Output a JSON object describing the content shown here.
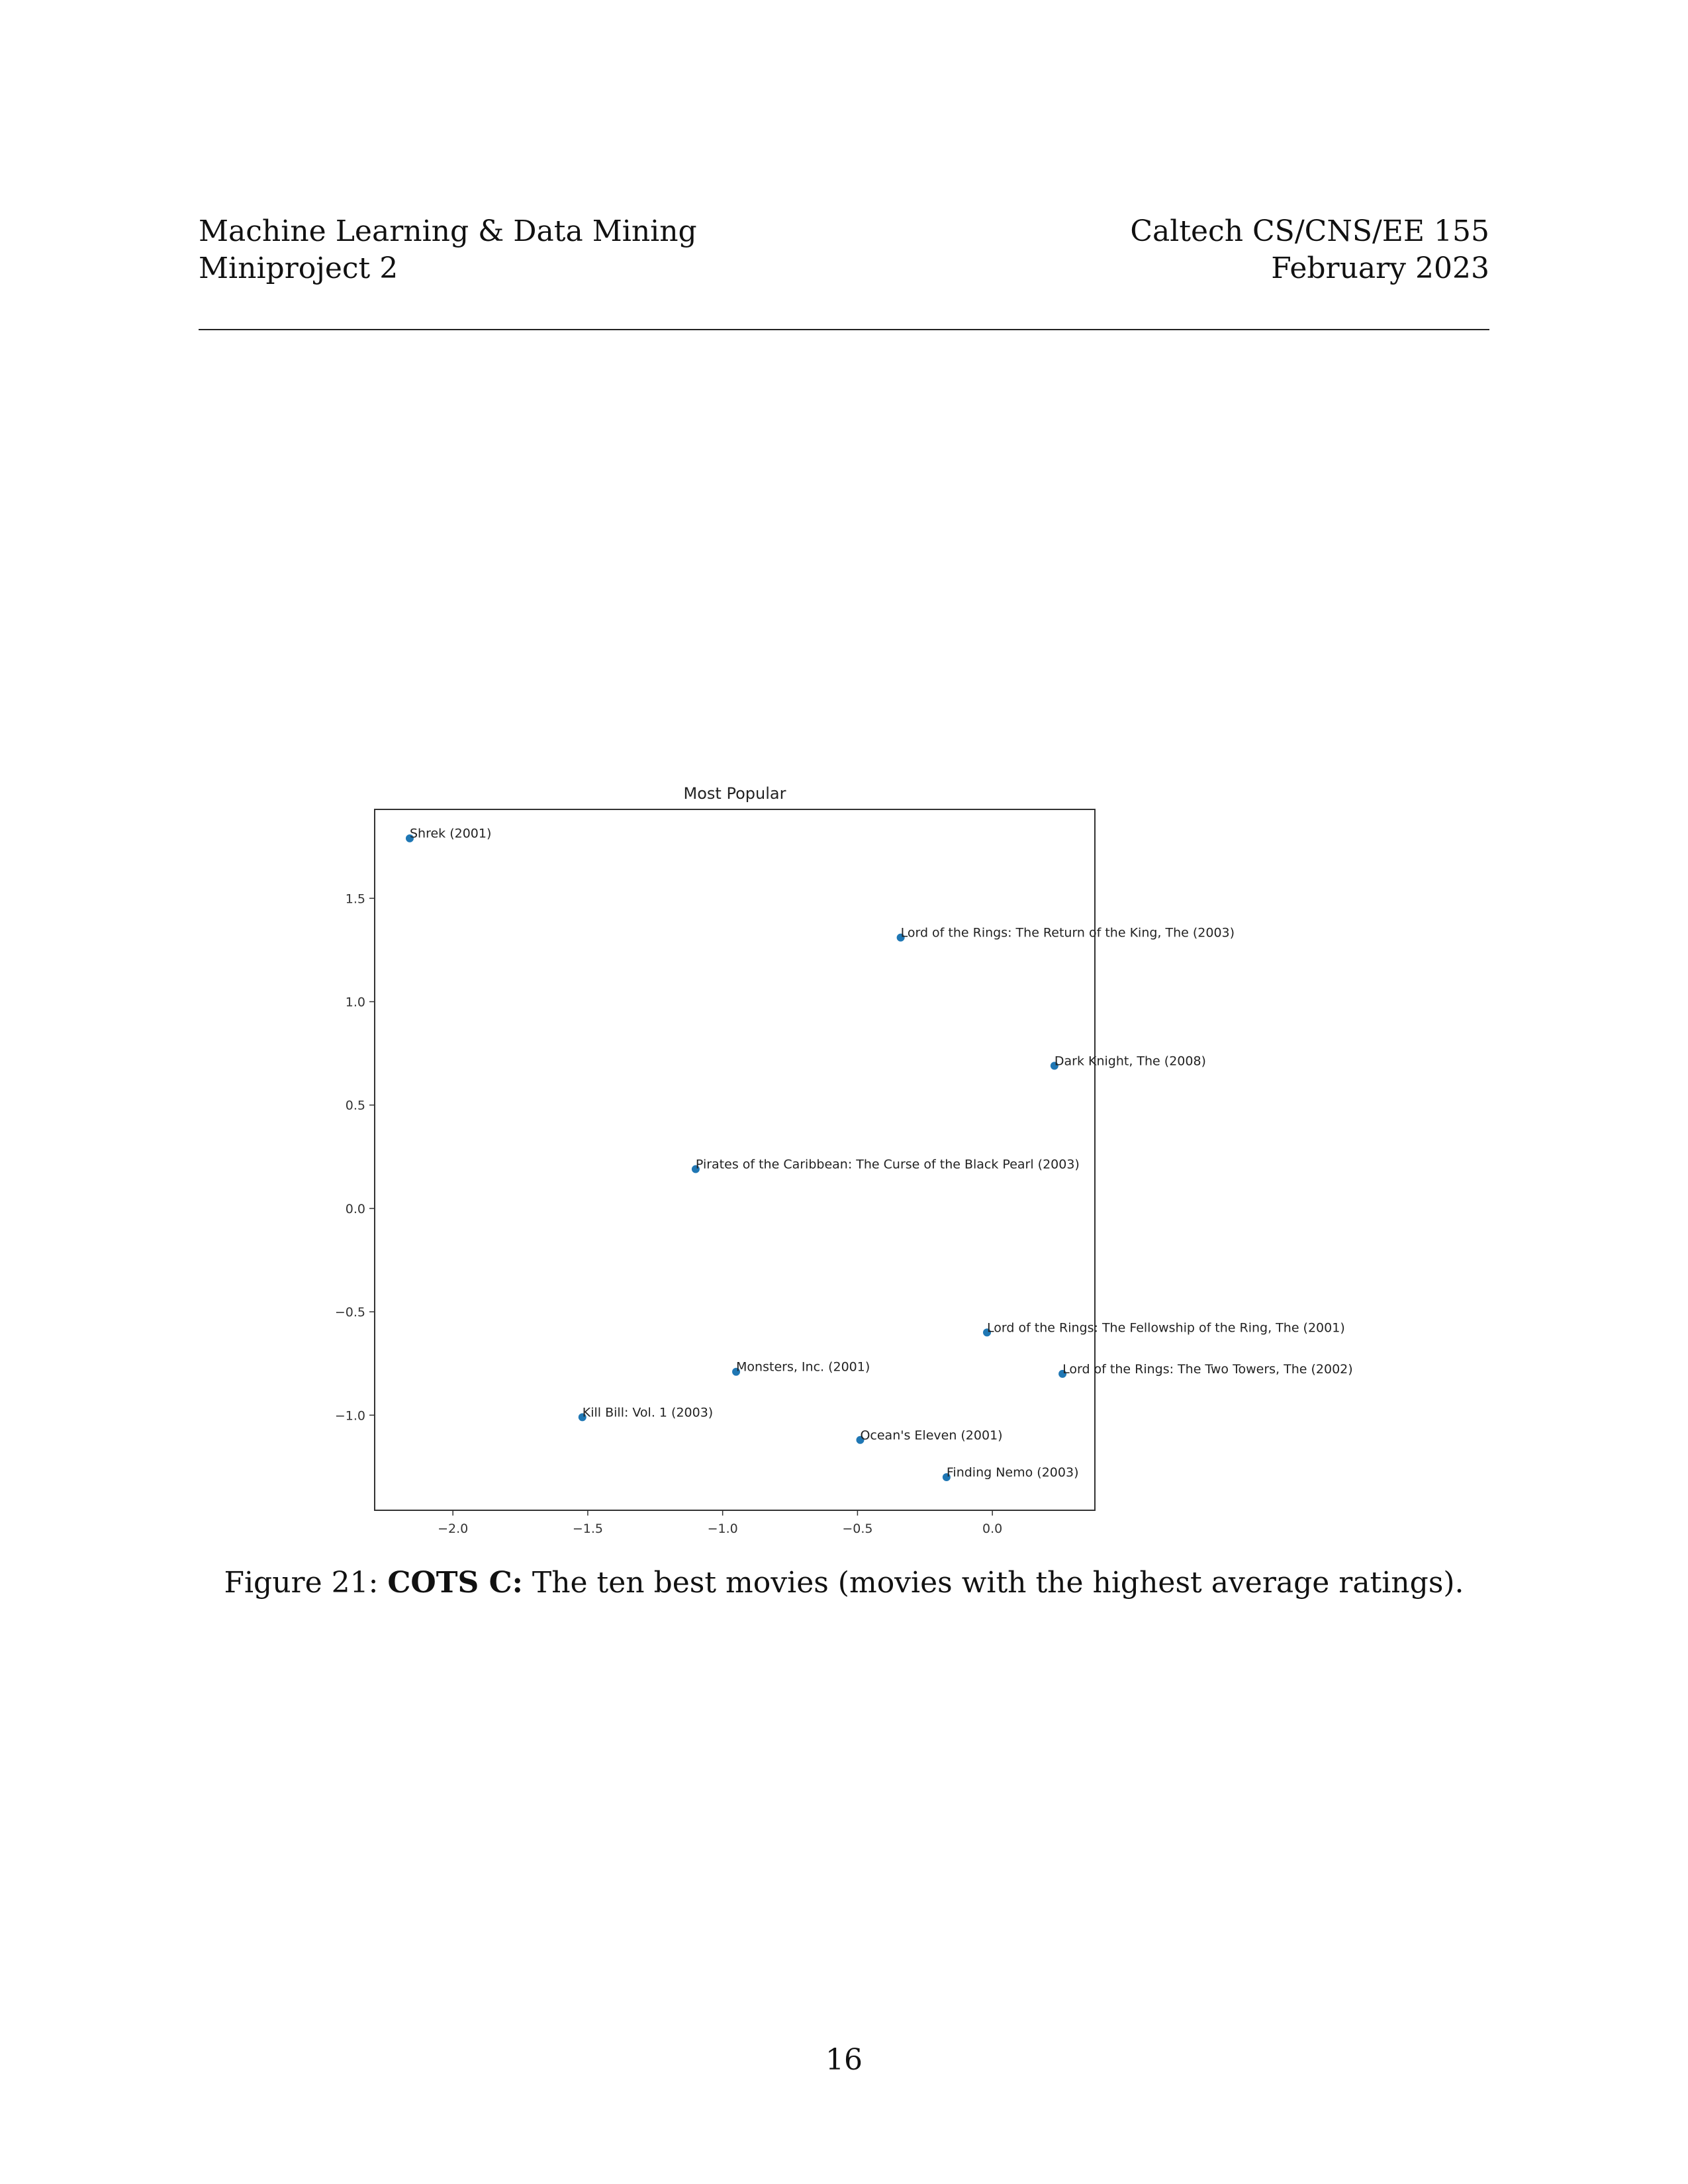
{
  "header": {
    "left_line1": "Machine Learning & Data Mining",
    "left_line2": "Miniproject 2",
    "right_line1": "Caltech CS/CNS/EE 155",
    "right_line2": "February 2023"
  },
  "chart_data": {
    "type": "scatter",
    "title": "Most Popular",
    "xlabel": "",
    "ylabel": "",
    "xlim": [
      -2.29,
      0.38
    ],
    "ylim": [
      -1.46,
      1.93
    ],
    "xticks": [
      -2.0,
      -1.5,
      -1.0,
      -0.5,
      0.0
    ],
    "xtick_labels": [
      "−2.0",
      "−1.5",
      "−1.0",
      "−0.5",
      "0.0"
    ],
    "yticks": [
      1.5,
      1.0,
      0.5,
      0.0,
      -0.5,
      -1.0
    ],
    "ytick_labels": [
      "1.5",
      "1.0",
      "0.5",
      "0.0",
      "−0.5",
      "−1.0"
    ],
    "grid": false,
    "point_color": "#1f77b4",
    "points": [
      {
        "x": -2.16,
        "y": 1.79,
        "label": "Shrek (2001)"
      },
      {
        "x": -0.34,
        "y": 1.31,
        "label": "Lord of the Rings: The Return of the King, The (2003)"
      },
      {
        "x": 0.23,
        "y": 0.69,
        "label": "Dark Knight, The (2008)"
      },
      {
        "x": -1.1,
        "y": 0.19,
        "label": "Pirates of the Caribbean: The Curse of the Black Pearl (2003)"
      },
      {
        "x": -0.02,
        "y": -0.6,
        "label": "Lord of the Rings: The Fellowship of the Ring, The (2001)"
      },
      {
        "x": -0.95,
        "y": -0.79,
        "label": "Monsters, Inc. (2001)"
      },
      {
        "x": 0.26,
        "y": -0.8,
        "label": "Lord of the Rings: The Two Towers, The (2002)"
      },
      {
        "x": -1.52,
        "y": -1.01,
        "label": "Kill Bill: Vol. 1 (2003)"
      },
      {
        "x": -0.49,
        "y": -1.12,
        "label": "Ocean's Eleven (2001)"
      },
      {
        "x": -0.17,
        "y": -1.3,
        "label": "Finding Nemo (2003)"
      }
    ]
  },
  "caption": {
    "prefix": "Figure 21: ",
    "bold": "COTS C:",
    "text": " The ten best movies (movies with the highest average ratings)."
  },
  "page_number": "16"
}
